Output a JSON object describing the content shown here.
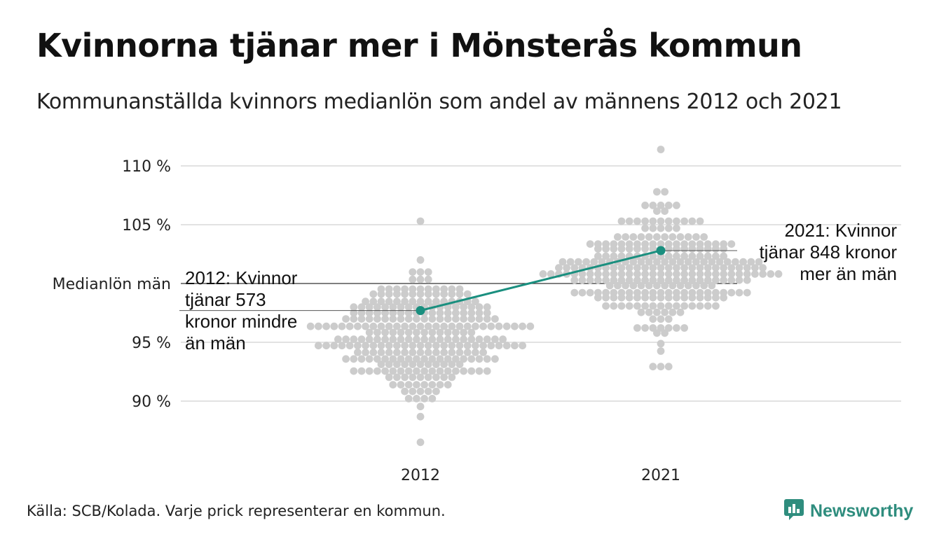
{
  "title": "Kvinnorna tjänar mer i Mönsterås kommun",
  "subtitle": "Kommunanställda kvinnors medianlön som andel av männens 2012 och 2021",
  "source": "Källa: SCB/Kolada. Varje prick representerar en kommun.",
  "brand": {
    "name": "Newsworthy",
    "icon": "newsworthy-logo-icon",
    "color": "#2f8d7e"
  },
  "chart_data": {
    "type": "scatter",
    "subtype": "beeswarm",
    "categories": [
      "2012",
      "2021"
    ],
    "y_ticks": [
      {
        "value": 90,
        "label": "90 %"
      },
      {
        "value": 95,
        "label": "95 %"
      },
      {
        "value": 105,
        "label": "105 %"
      },
      {
        "value": 110,
        "label": "110 %"
      }
    ],
    "reference_line": {
      "value": 100,
      "label": "Medianlön män"
    },
    "ylim": [
      86,
      112
    ],
    "grid": true,
    "colors": {
      "dots": "#cccccc",
      "highlight": "#1a8f7f",
      "grid": "#e2e2e2",
      "reference": "#333333"
    },
    "highlight": {
      "name": "Mönsterås",
      "points": [
        {
          "x": "2012",
          "y": 97.7
        },
        {
          "x": "2021",
          "y": 102.8
        }
      ]
    },
    "annotations": [
      {
        "x": "2012",
        "y": 97.7,
        "lines": [
          "2012: Kvinnor",
          "tjänar 573",
          "kronor mindre",
          "än män"
        ],
        "align": "left"
      },
      {
        "x": "2021",
        "y": 102.8,
        "lines": [
          "2021: Kvinnor",
          "tjänar 848 kronor",
          "mer än män"
        ],
        "align": "right"
      }
    ],
    "swarms": [
      {
        "x": "2012",
        "center": 95.5,
        "spread": 2.6,
        "min": 86.5,
        "max": 105.3,
        "count": 290
      },
      {
        "x": "2021",
        "center": 101.2,
        "spread": 2.4,
        "min": 92.6,
        "max": 111.4,
        "count": 290
      }
    ]
  }
}
